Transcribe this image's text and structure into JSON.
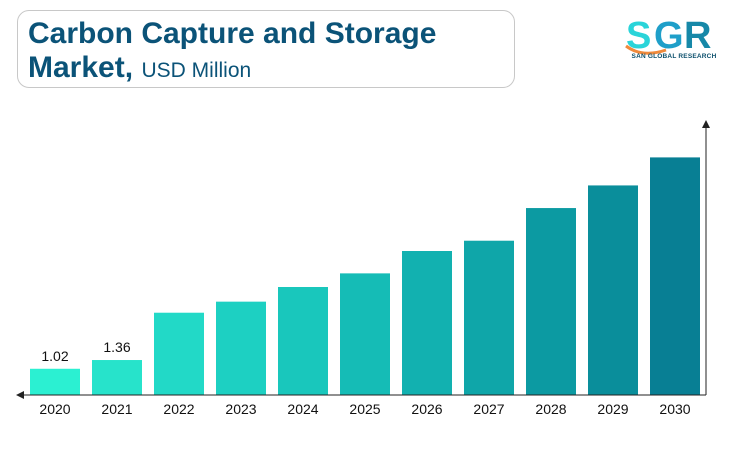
{
  "header": {
    "title_line1": "Carbon Capture and Storage",
    "title_line2": "Market,",
    "unit": "USD Million"
  },
  "logo": {
    "text": "SGR",
    "subtitle": "SAN GLOBAL RESEARCH",
    "colors": {
      "s": "#2ad4d9",
      "g": "#1f9fc9",
      "r": "#1688a8",
      "swoosh": "#f08a3c"
    }
  },
  "chart_data": {
    "type": "bar",
    "categories": [
      "2020",
      "2021",
      "2022",
      "2023",
      "2024",
      "2025",
      "2026",
      "2027",
      "2028",
      "2029",
      "2030"
    ],
    "values": [
      1.02,
      1.36,
      3.2,
      3.63,
      4.2,
      4.73,
      5.6,
      6.0,
      7.27,
      8.15,
      9.24
    ],
    "data_labels": [
      "1.02",
      "1.36",
      "",
      "",
      "",
      "",
      "",
      "",
      "",
      "",
      ""
    ],
    "title": "Carbon Capture and Storage Market, USD Million",
    "xlabel": "",
    "ylabel": "",
    "ylim": [
      0,
      10.5
    ],
    "grid": false,
    "colors": [
      "#2bf0d2",
      "#27e3cb",
      "#22d9c7",
      "#1dd0c2",
      "#19c7bc",
      "#15bcb6",
      "#12b1b0",
      "#0fa6a9",
      "#0c9aa2",
      "#0a8e9b",
      "#087f94"
    ]
  }
}
